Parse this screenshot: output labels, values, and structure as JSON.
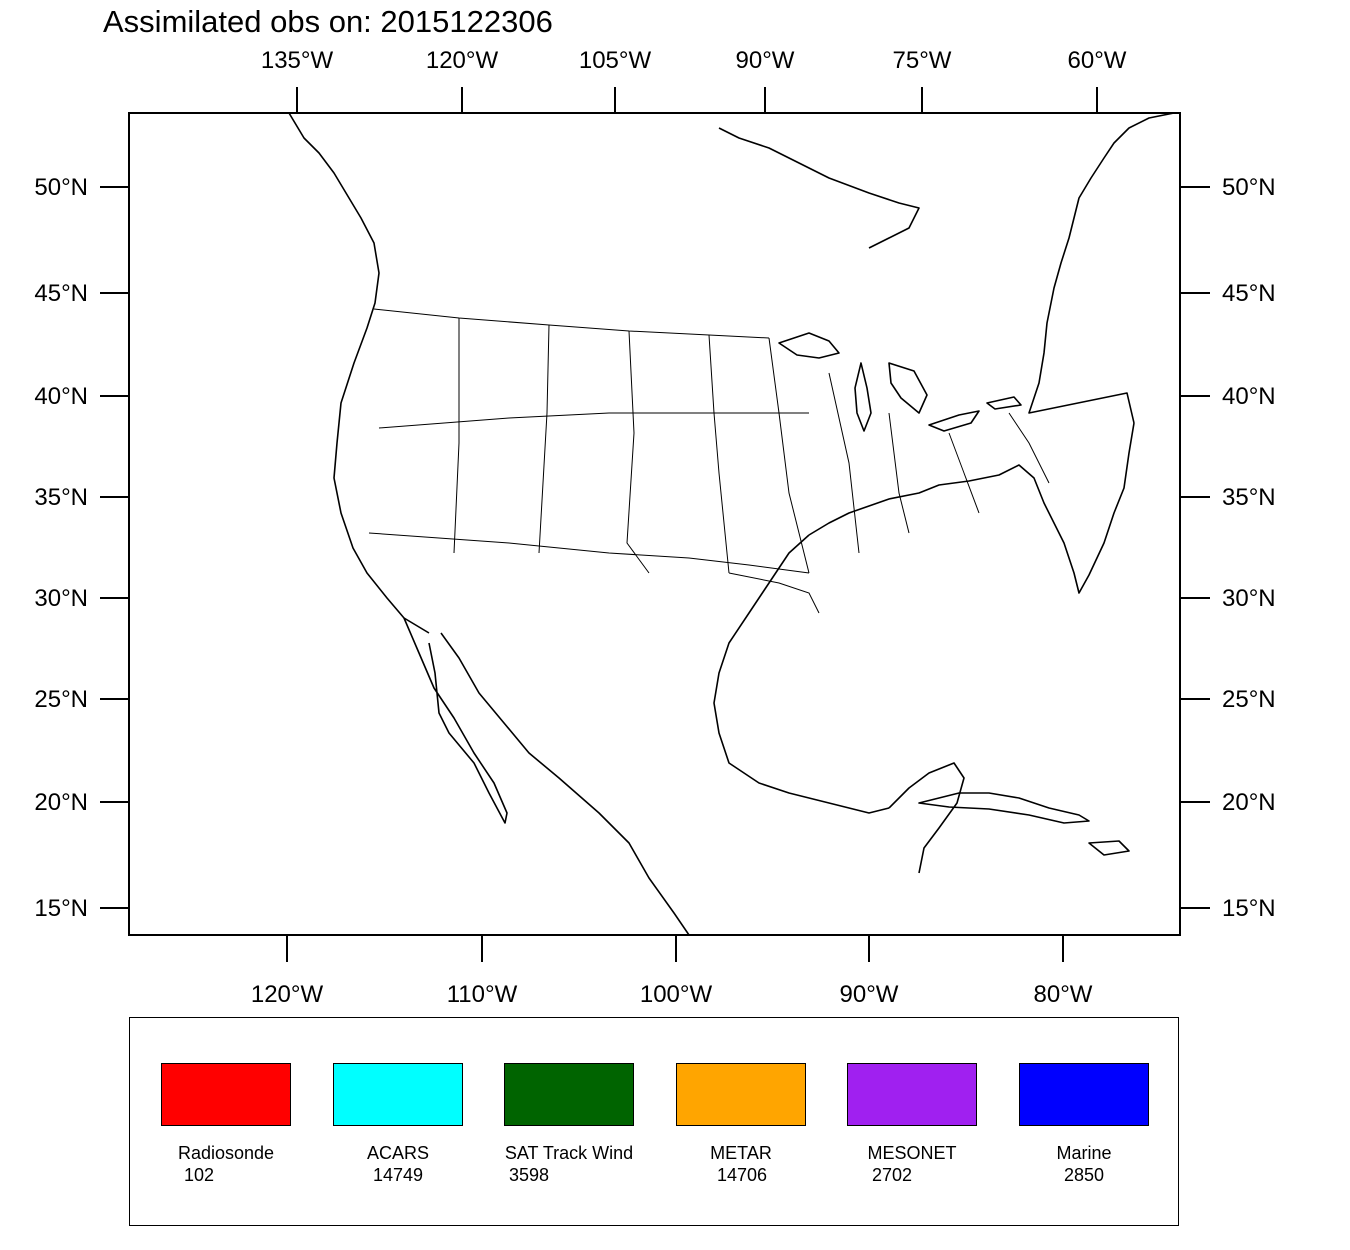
{
  "title": "Assimilated obs on: 2015122306",
  "axes": {
    "top_lon_labels": [
      "135°W",
      "120°W",
      "105°W",
      "90°W",
      "75°W",
      "60°W"
    ],
    "bottom_lon_labels": [
      "120°W",
      "110°W",
      "100°W",
      "90°W",
      "80°W"
    ],
    "lat_labels": [
      "50°N",
      "45°N",
      "40°N",
      "35°N",
      "30°N",
      "25°N",
      "20°N",
      "15°N"
    ]
  },
  "legend": [
    {
      "name": "Radiosonde",
      "count": "102",
      "color": "#ff0000"
    },
    {
      "name": "ACARS",
      "count": "14749",
      "color": "#00ffff"
    },
    {
      "name": "SAT Track Wind",
      "count": "3598",
      "color": "#006400"
    },
    {
      "name": "METAR",
      "count": "14706",
      "color": "#ffa500"
    },
    {
      "name": "MESONET",
      "count": "2702",
      "color": "#a020f0"
    },
    {
      "name": "Marine",
      "count": "2850",
      "color": "#0000ff"
    }
  ],
  "map": {
    "projection": "Lambert Conformal Conic",
    "domain": "CONUS",
    "point_markers": {
      "SAT Track Wind": "open-triangle",
      "ACARS": "square",
      "METAR": "inverted-triangle",
      "MESONET": "diamond",
      "Marine": "left-triangle"
    }
  }
}
